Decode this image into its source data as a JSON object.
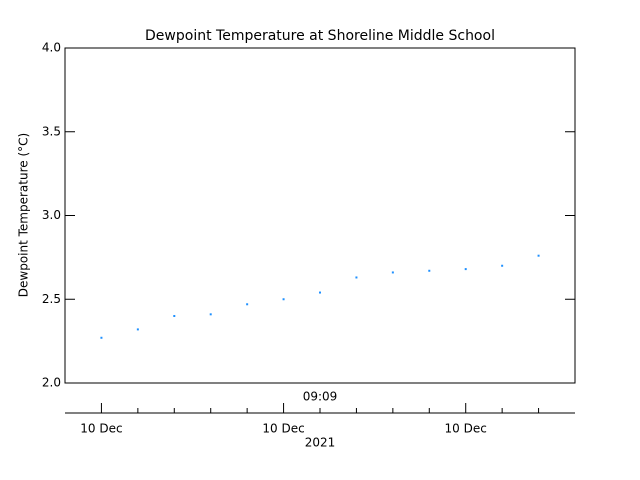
{
  "chart_data": {
    "type": "scatter",
    "title": "Dewpoint Temperature at Shoreline Middle School",
    "y_label": "Dewpoint Temperature (°C)",
    "time_label": "09:09",
    "year_label": "2021",
    "categories": [
      "10 Dec",
      null,
      null,
      null,
      null,
      "10 Dec",
      null,
      null,
      null,
      null,
      "10 Dec",
      null,
      null
    ],
    "values": [
      2.27,
      2.32,
      2.4,
      2.41,
      2.47,
      2.5,
      2.54,
      2.63,
      2.66,
      2.67,
      2.68,
      2.7,
      2.76
    ],
    "color": "#1e90ff",
    "ylim": [
      2.0,
      4.0
    ],
    "yticks": [
      {
        "value": 2.0,
        "label": "2.0"
      },
      {
        "value": 2.5,
        "label": "2.5"
      },
      {
        "value": 3.0,
        "label": "3.0"
      },
      {
        "value": 3.5,
        "label": "3.5"
      },
      {
        "value": 4.0,
        "label": "4.0"
      }
    ]
  }
}
